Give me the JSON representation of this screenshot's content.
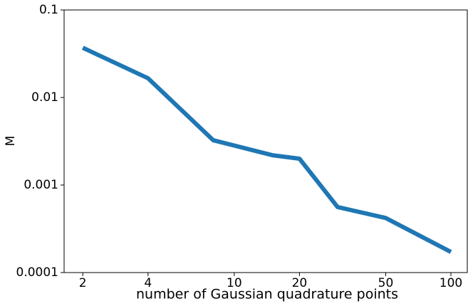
{
  "chart_data": {
    "type": "line",
    "xlabel": "number of Gaussian quadrature points",
    "ylabel": "M",
    "x": [
      2,
      4,
      8,
      15,
      20,
      30,
      50,
      100
    ],
    "series": [
      {
        "color": "#1f77b4",
        "values": [
          0.037,
          0.0166,
          0.00325,
          0.00219,
          0.002,
          0.00056,
          0.00042,
          0.000172
        ]
      }
    ],
    "xscale": "log",
    "yscale": "log",
    "xlim": [
      1.64,
      119
    ],
    "ylim": [
      0.0001,
      0.1
    ],
    "xticks": [
      2,
      4,
      10,
      20,
      50,
      100
    ],
    "yticks": [
      0.0001,
      0.001,
      0.01,
      0.1
    ]
  }
}
